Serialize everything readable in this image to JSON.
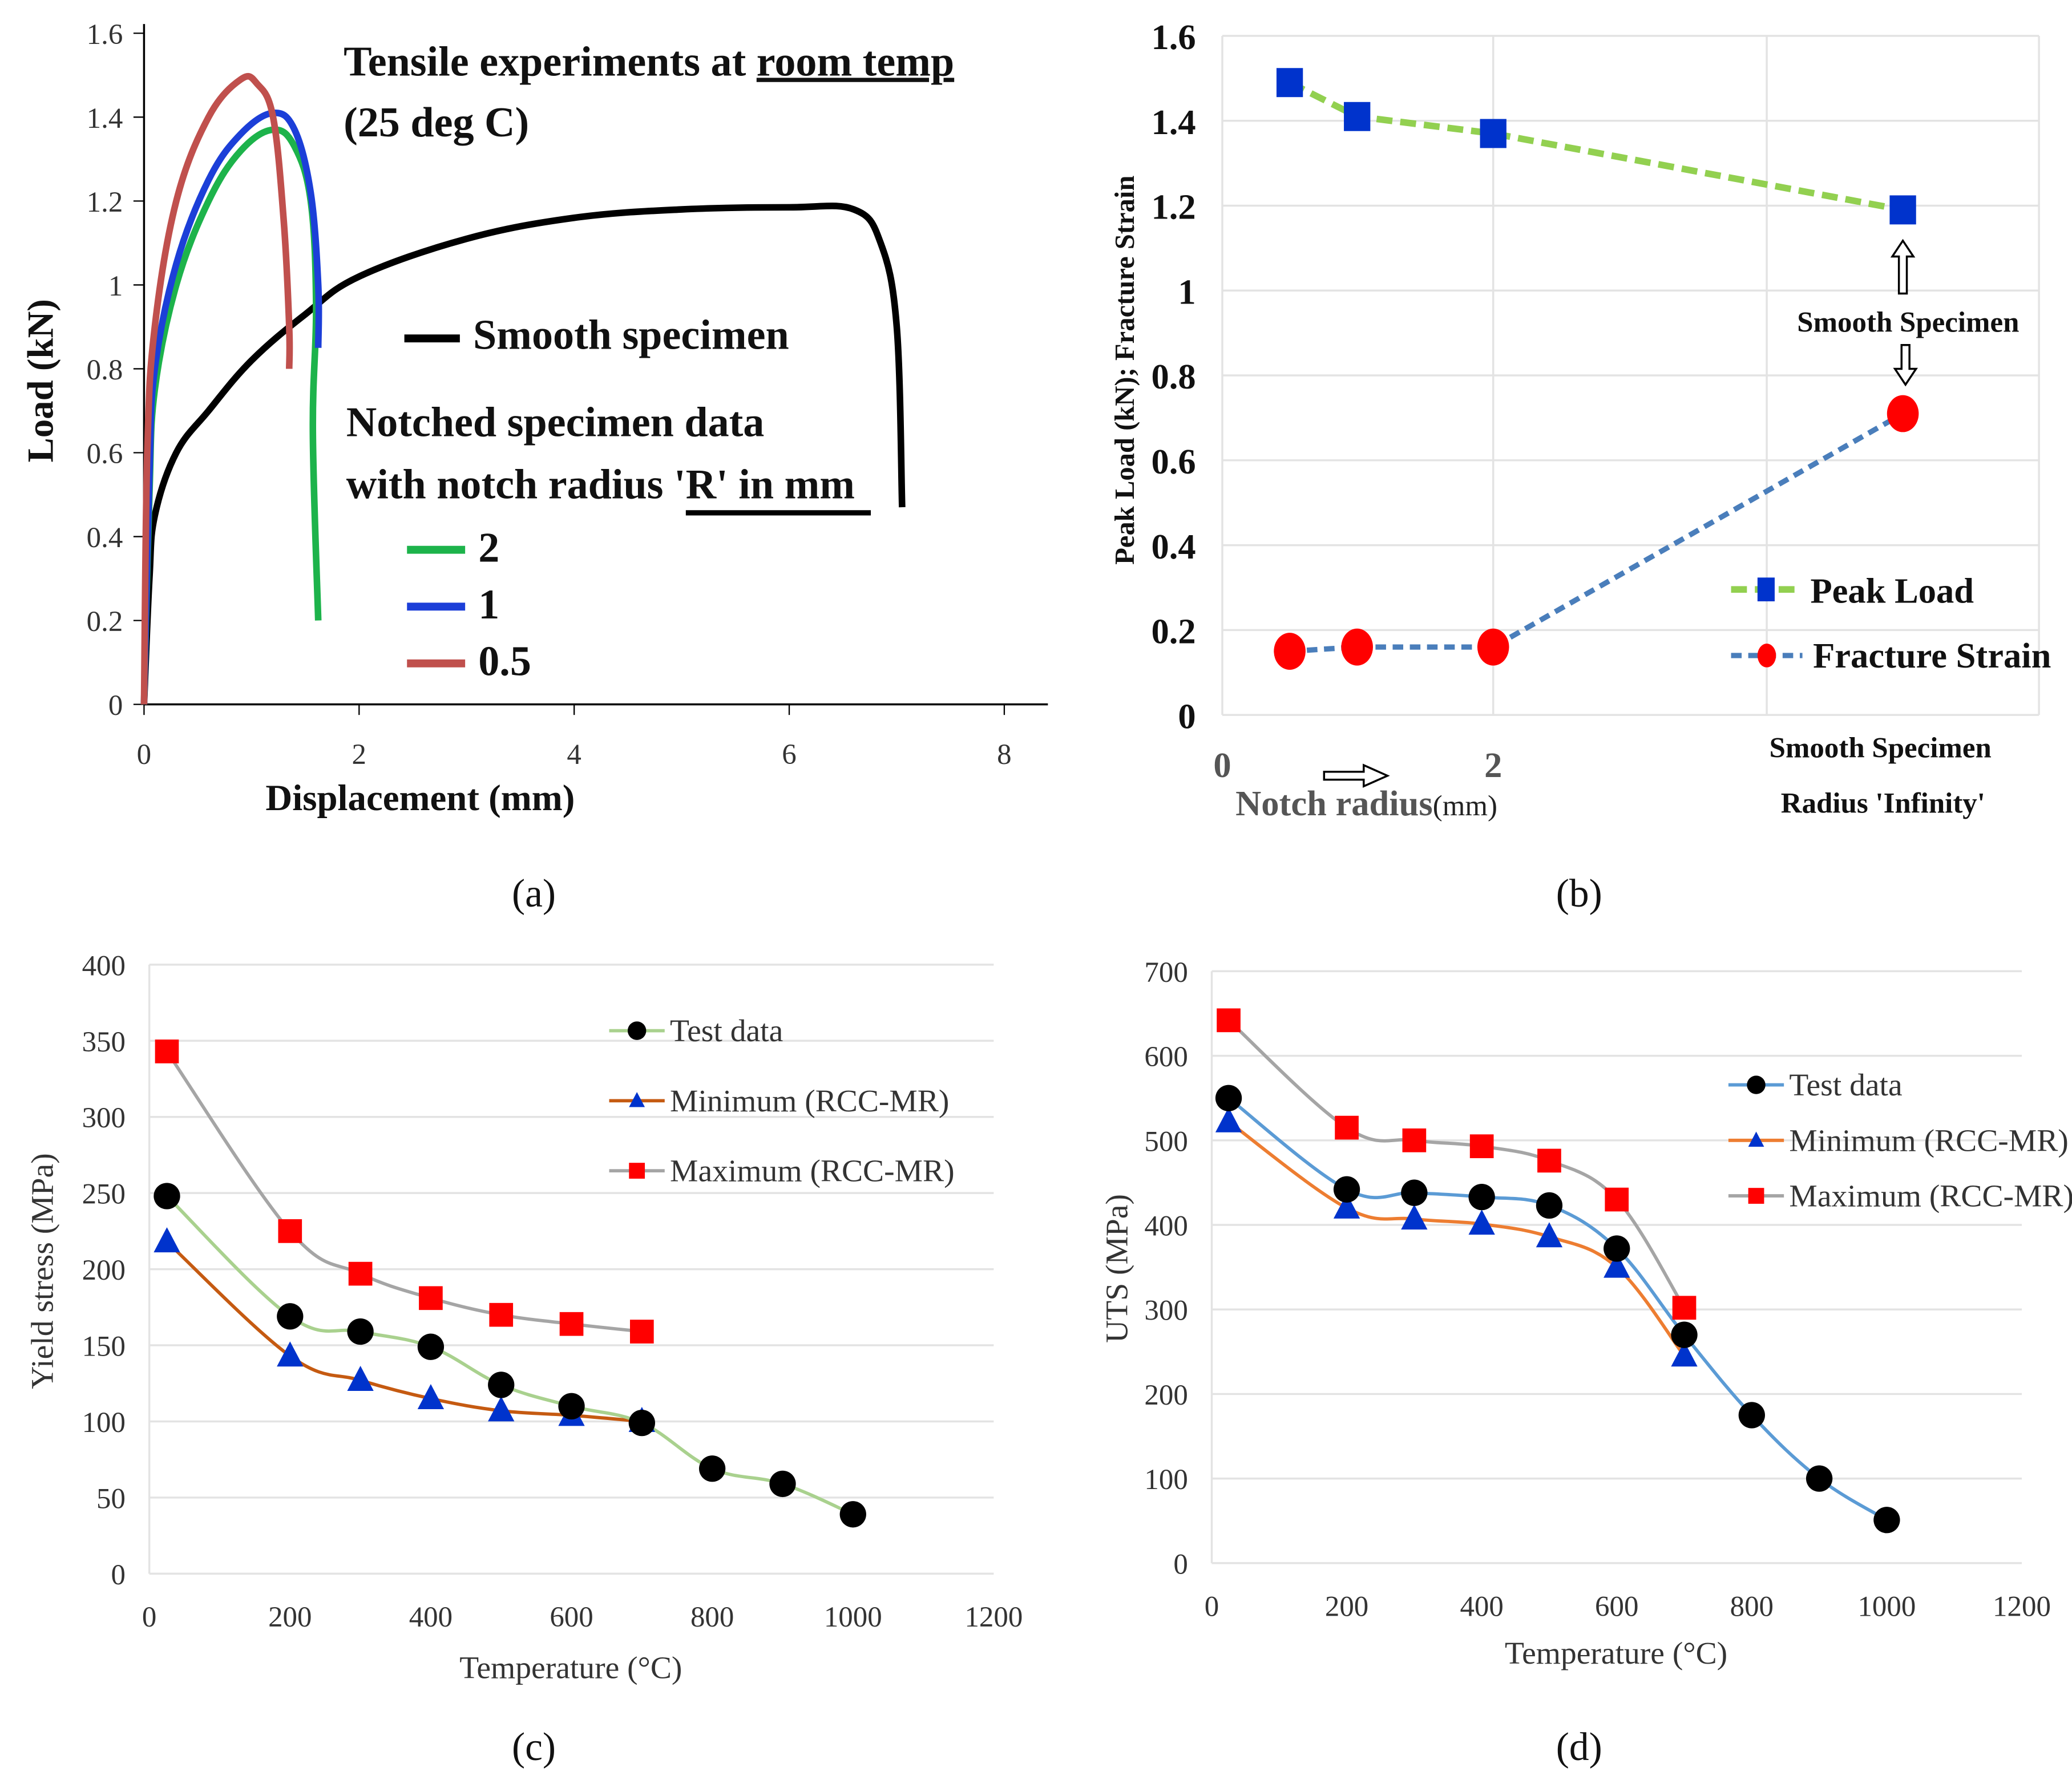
{
  "captions": [
    "(a)",
    "(b)",
    "(c)",
    "(d)"
  ],
  "chart_data": [
    {
      "type": "line",
      "panel": "a",
      "xlabel": "Displacement (mm)",
      "ylabel": "Load (kN)",
      "xlim": [
        0,
        8
      ],
      "ylim": [
        0,
        1.6
      ],
      "xticks": [
        "0",
        "2",
        "4",
        "6",
        "8"
      ],
      "yticks": [
        "0",
        "0.2",
        "0.4",
        "0.6",
        "0.8",
        "1",
        "1.2",
        "1.4",
        "1.6"
      ],
      "title_line1": "Tensile experiments at ",
      "title_underlined": "room temp",
      ".": ".",
      "title_line2": "(25 deg C)",
      "legend_smooth": "Smooth specimen",
      "notched_line1": "Notched specimen data",
      "notched_line2_a": "with notch radius ",
      "notched_line2_b": "'R' in mm",
      "series": [
        {
          "name": "Smooth specimen",
          "color": "#000000",
          "points": [
            [
              0,
              0
            ],
            [
              0.05,
              0.3
            ],
            [
              0.1,
              0.45
            ],
            [
              0.3,
              0.6
            ],
            [
              0.6,
              0.7
            ],
            [
              1,
              0.82
            ],
            [
              1.5,
              0.93
            ],
            [
              2,
              1.02
            ],
            [
              3,
              1.11
            ],
            [
              4,
              1.16
            ],
            [
              5,
              1.18
            ],
            [
              6,
              1.185
            ],
            [
              6.6,
              1.18
            ],
            [
              6.85,
              1.1
            ],
            [
              7.0,
              0.9
            ],
            [
              7.05,
              0.47
            ]
          ]
        },
        {
          "name": "2",
          "color": "#1db34b",
          "points": [
            [
              0,
              0
            ],
            [
              0.05,
              0.5
            ],
            [
              0.1,
              0.75
            ],
            [
              0.3,
              1.0
            ],
            [
              0.6,
              1.2
            ],
            [
              0.9,
              1.32
            ],
            [
              1.2,
              1.37
            ],
            [
              1.4,
              1.33
            ],
            [
              1.55,
              1.2
            ],
            [
              1.6,
              0.95
            ],
            [
              1.57,
              0.65
            ],
            [
              1.62,
              0.2
            ]
          ]
        },
        {
          "name": "1",
          "color": "#1c3fd8",
          "points": [
            [
              0,
              0
            ],
            [
              0.05,
              0.55
            ],
            [
              0.1,
              0.8
            ],
            [
              0.3,
              1.05
            ],
            [
              0.6,
              1.25
            ],
            [
              0.9,
              1.36
            ],
            [
              1.2,
              1.41
            ],
            [
              1.4,
              1.37
            ],
            [
              1.55,
              1.22
            ],
            [
              1.62,
              1.0
            ],
            [
              1.62,
              0.85
            ]
          ]
        },
        {
          "name": "0.5",
          "color": "#c0504d",
          "points": [
            [
              0,
              0
            ],
            [
              0.03,
              0.6
            ],
            [
              0.1,
              0.9
            ],
            [
              0.3,
              1.2
            ],
            [
              0.6,
              1.4
            ],
            [
              0.9,
              1.49
            ],
            [
              1.05,
              1.48
            ],
            [
              1.2,
              1.4
            ],
            [
              1.3,
              1.15
            ],
            [
              1.35,
              0.9
            ],
            [
              1.35,
              0.8
            ]
          ]
        }
      ]
    },
    {
      "type": "line",
      "panel": "b",
      "ylabel": "Peak Load (kN); Fracture Strain",
      "xlabel_main": "Notch radius",
      "xlabel_unit": "(mm)",
      "ylim": [
        0,
        1.6
      ],
      "yticks": [
        "0",
        "0.2",
        "0.4",
        "0.6",
        "0.8",
        "1",
        "1.2",
        "1.4",
        "1.6"
      ],
      "xticks": [
        "0",
        "2"
      ],
      "categories": [
        "0.5",
        "1",
        "2",
        "Smooth Specimen"
      ],
      "smooth_label_line1": "Smooth Specimen",
      "smooth_label_line2": "Radius 'Infinity'",
      "annotation": "Smooth Specimen",
      "series": [
        {
          "name": "Peak Load",
          "color": "#92d050",
          "marker": "square",
          "marker_color": "#0033cc",
          "values": [
            1.49,
            1.41,
            1.37,
            1.19
          ]
        },
        {
          "name": "Fracture Strain",
          "color": "#4a7ebb",
          "marker": "circle",
          "marker_color": "#ff0000",
          "values": [
            0.15,
            0.16,
            0.16,
            0.71
          ]
        }
      ]
    },
    {
      "type": "line",
      "panel": "c",
      "xlabel": "Temperature (°C)",
      "ylabel": "Yield stress (MPa)",
      "xlim": [
        0,
        1200
      ],
      "ylim": [
        0,
        400
      ],
      "xticks": [
        "0",
        "200",
        "400",
        "600",
        "800",
        "1000",
        "1200"
      ],
      "yticks": [
        "0",
        "50",
        "100",
        "150",
        "200",
        "250",
        "300",
        "350",
        "400"
      ],
      "series": [
        {
          "name": "Test  data",
          "color": "#a9d18e",
          "marker": "circle",
          "marker_color": "#000000",
          "x": [
            25,
            200,
            300,
            400,
            500,
            600,
            700,
            800,
            900,
            1000
          ],
          "y": [
            248,
            169,
            159,
            149,
            124,
            110,
            99,
            69,
            59,
            39
          ]
        },
        {
          "name": "Minimum (RCC-MR)",
          "color": "#c55a11",
          "marker": "triangle",
          "marker_color": "#0033cc",
          "x": [
            25,
            200,
            300,
            400,
            500,
            600,
            700
          ],
          "y": [
            218,
            143,
            127,
            115,
            107,
            104,
            100
          ]
        },
        {
          "name": "Maximum (RCC-MR)",
          "color": "#a5a5a5",
          "marker": "square",
          "marker_color": "#ff0000",
          "x": [
            25,
            200,
            300,
            400,
            500,
            600,
            700
          ],
          "y": [
            343,
            225,
            197,
            181,
            170,
            164,
            159
          ]
        }
      ]
    },
    {
      "type": "line",
      "panel": "d",
      "xlabel": "Temperature (°C)",
      "ylabel": "UTS (MPa)",
      "xlim": [
        0,
        1200
      ],
      "ylim": [
        0,
        700
      ],
      "xticks": [
        "0",
        "200",
        "400",
        "600",
        "800",
        "1000",
        "1200"
      ],
      "yticks": [
        "0",
        "100",
        "200",
        "300",
        "400",
        "500",
        "600",
        "700"
      ],
      "series": [
        {
          "name": "Test data",
          "color": "#5b9bd5",
          "marker": "circle",
          "marker_color": "#000000",
          "x": [
            25,
            200,
            300,
            400,
            500,
            600,
            700,
            800,
            900,
            1000
          ],
          "y": [
            550,
            442,
            438,
            433,
            423,
            372,
            270,
            175,
            100,
            51
          ]
        },
        {
          "name": "Minimum (RCC-MR)",
          "color": "#ed7d31",
          "marker": "triangle",
          "marker_color": "#0033cc",
          "x": [
            25,
            200,
            300,
            400,
            500,
            600,
            700
          ],
          "y": [
            522,
            420,
            407,
            401,
            386,
            350,
            245
          ]
        },
        {
          "name": "Maximum (RCC-MR)",
          "color": "#a5a5a5",
          "marker": "square",
          "marker_color": "#ff0000",
          "x": [
            25,
            200,
            300,
            400,
            500,
            600,
            700
          ],
          "y": [
            642,
            515,
            500,
            493,
            476,
            430,
            302
          ]
        }
      ]
    }
  ]
}
